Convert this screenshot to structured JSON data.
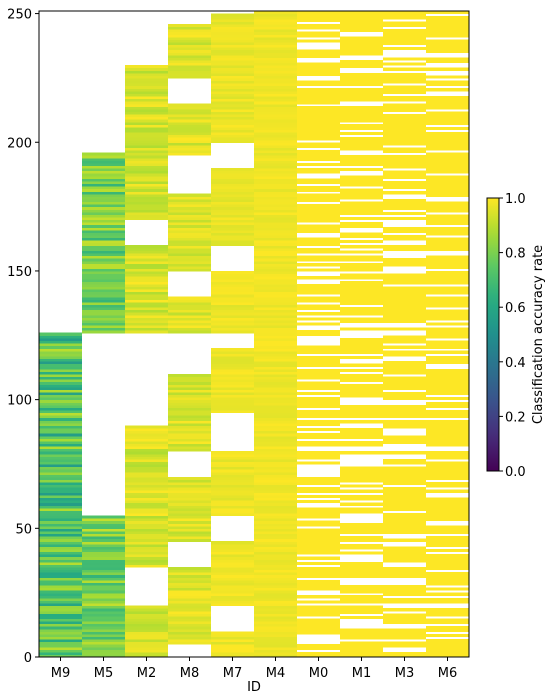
{
  "chart_data": {
    "type": "heatmap",
    "xlabel": "ID",
    "ylabel": "",
    "columns": [
      "M9",
      "M5",
      "M2",
      "M8",
      "M7",
      "M4",
      "M0",
      "M1",
      "M3",
      "M6"
    ],
    "ylim": [
      0,
      251
    ],
    "yticks": [
      0,
      50,
      100,
      150,
      200,
      250
    ],
    "colorbar": {
      "label": "Classification accuracy rate",
      "colormap": "viridis",
      "range": [
        0.0,
        1.0
      ],
      "ticks": [
        "0.0",
        "0.2",
        "0.4",
        "0.6",
        "0.8",
        "1.0"
      ]
    },
    "column_value_range": {
      "M9": [
        0.55,
        0.9
      ],
      "M5": [
        0.65,
        0.92
      ],
      "M2": [
        0.88,
        1.0
      ],
      "M8": [
        0.9,
        1.0
      ],
      "M7": [
        0.95,
        1.0
      ],
      "M4": [
        0.96,
        1.0
      ],
      "M0": [
        1.0,
        1.0
      ],
      "M1": [
        1.0,
        1.0
      ],
      "M3": [
        1.0,
        1.0
      ],
      "M6": [
        1.0,
        1.0
      ]
    },
    "filled_row_ranges": {
      "M9": [
        [
          0,
          126
        ]
      ],
      "M5": [
        [
          0,
          55
        ],
        [
          126,
          196
        ]
      ],
      "M2": [
        [
          0,
          20
        ],
        [
          35,
          90
        ],
        [
          126,
          160
        ],
        [
          170,
          230
        ]
      ],
      "M8": [
        [
          5,
          35
        ],
        [
          45,
          70
        ],
        [
          80,
          110
        ],
        [
          126,
          140
        ],
        [
          150,
          180
        ],
        [
          195,
          215
        ],
        [
          225,
          246
        ]
      ],
      "M7": [
        [
          0,
          10
        ],
        [
          20,
          45
        ],
        [
          55,
          80
        ],
        [
          95,
          120
        ],
        [
          126,
          150
        ],
        [
          160,
          190
        ],
        [
          200,
          250
        ]
      ],
      "M4": [
        [
          0,
          251
        ]
      ],
      "M0": [
        [
          0,
          251
        ]
      ],
      "M1": [
        [
          0,
          251
        ]
      ],
      "M3": [
        [
          0,
          251
        ]
      ],
      "M6": [
        [
          0,
          251
        ]
      ]
    },
    "grid": false,
    "colorbar_position": "right"
  }
}
